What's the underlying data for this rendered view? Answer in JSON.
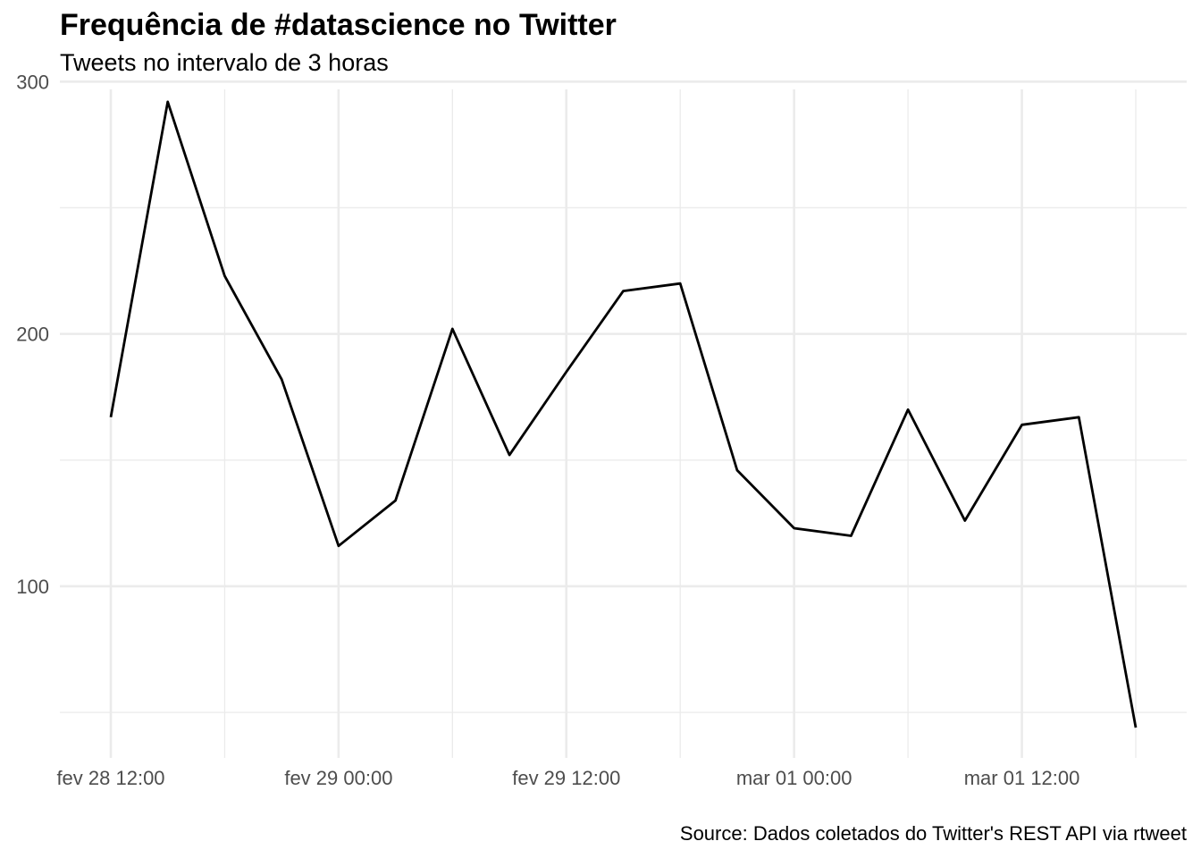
{
  "chart_data": {
    "type": "line",
    "title": "Frequência de #datascience no Twitter",
    "subtitle": "Tweets no intervalo de 3 horas",
    "caption": "Source: Dados coletados do Twitter's REST API via rtweet",
    "xlabel": "",
    "ylabel": "",
    "x": [
      "2020-02-28 12:00",
      "2020-02-28 15:00",
      "2020-02-28 18:00",
      "2020-02-28 21:00",
      "2020-02-29 00:00",
      "2020-02-29 03:00",
      "2020-02-29 06:00",
      "2020-02-29 09:00",
      "2020-02-29 12:00",
      "2020-02-29 15:00",
      "2020-02-29 18:00",
      "2020-02-29 21:00",
      "2020-03-01 00:00",
      "2020-03-01 03:00",
      "2020-03-01 06:00",
      "2020-03-01 09:00",
      "2020-03-01 12:00",
      "2020-03-01 15:00",
      "2020-03-01 18:00"
    ],
    "series": [
      {
        "values": [
          167,
          292,
          223,
          182,
          116,
          134,
          202,
          152,
          185,
          217,
          220,
          146,
          123,
          120,
          170,
          126,
          164,
          167,
          44
        ]
      }
    ],
    "x_ticks": [
      "fev 28 12:00",
      "fev 29 00:00",
      "fev 29 12:00",
      "mar 01 00:00",
      "mar 01 12:00"
    ],
    "y_ticks": [
      100,
      200,
      300
    ],
    "ylim": [
      38,
      304
    ],
    "grid": true,
    "legend": "none",
    "line_color": "#000000"
  }
}
